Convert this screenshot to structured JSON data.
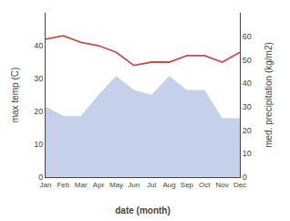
{
  "chart_data": {
    "type": "line",
    "categories": [
      "Jan",
      "Feb",
      "Mar",
      "Apr",
      "May",
      "Jun",
      "Jul",
      "Aug",
      "Sep",
      "Oct",
      "Nov",
      "Dec"
    ],
    "xlabel": "date (month)",
    "ylabel": "max temp (C)",
    "y2label": "med. precipitation (kg/m2)",
    "ylim": [
      0,
      50
    ],
    "yticks": [
      0,
      10,
      20,
      30,
      40
    ],
    "y2lim": [
      0,
      70
    ],
    "y2ticks": [
      0,
      10,
      20,
      30,
      40,
      50,
      60
    ],
    "grid": false,
    "series": [
      {
        "type": "area",
        "axis": "y2",
        "color": "#c5d0ea",
        "values": [
          30,
          26,
          26,
          35,
          43,
          37,
          35,
          43,
          37,
          37,
          25,
          25
        ]
      },
      {
        "type": "line",
        "color": "#c0504d",
        "values": [
          42,
          43,
          41,
          40,
          38,
          34,
          35,
          35,
          37,
          37,
          35,
          38
        ]
      }
    ]
  }
}
